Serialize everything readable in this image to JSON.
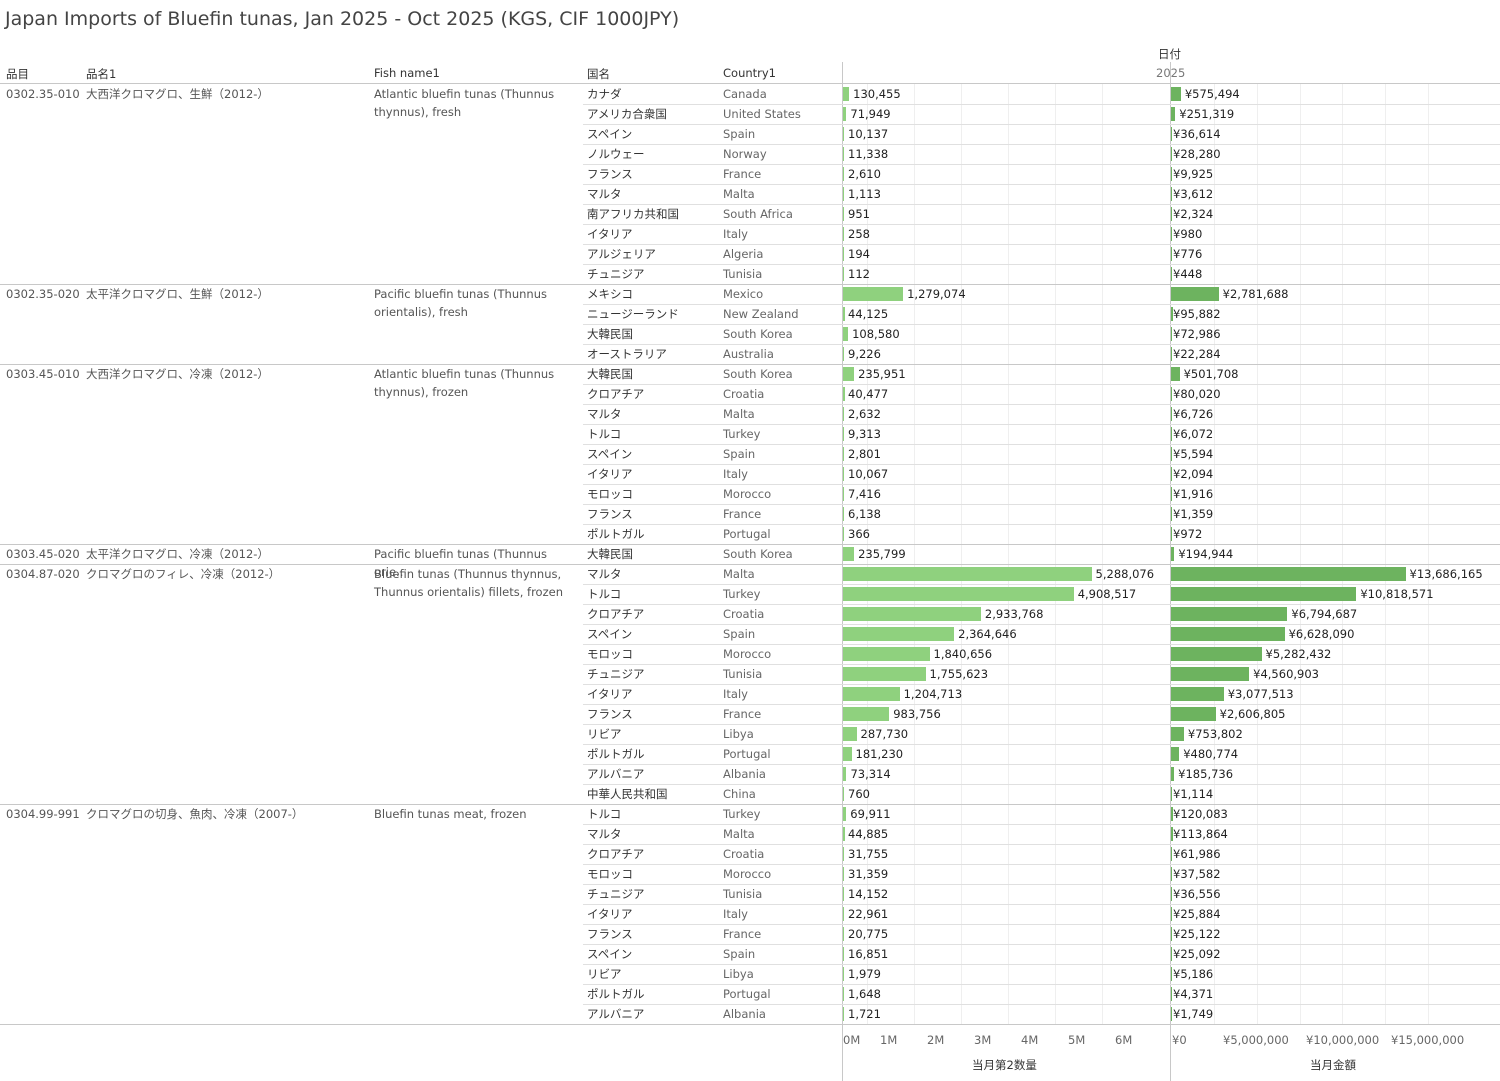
{
  "title": "Japan Imports of Bluefin tunas, Jan 2025 - Oct 2025 (KGS, CIF 1000JPY)",
  "headers": {
    "date": "日付",
    "year": "2025",
    "code": "品目",
    "jname": "品名1",
    "ename": "Fish name1",
    "jcountry": "国名",
    "ecountry": "Country1"
  },
  "axes": {
    "qty_title": "当月第2数量",
    "val_title": "当月金額",
    "qty_ticks": [
      "0M",
      "1M",
      "2M",
      "3M",
      "4M",
      "5M",
      "6M"
    ],
    "val_ticks": [
      "¥0",
      "¥5,000,000",
      "¥10,000,000",
      "¥15,000,000"
    ]
  },
  "colors": {
    "qty_bar": "#8fd17e",
    "val_bar": "#6db35f"
  },
  "chart_data": {
    "type": "bar",
    "orientation": "horizontal",
    "measures": [
      "当月第2数量",
      "当月金額"
    ],
    "qty_range": [
      0,
      6000000
    ],
    "val_range": [
      0,
      15000000
    ],
    "groups": [
      {
        "code": "0302.35-010",
        "jname": "大西洋クロマグロ、生鮮（2012-）",
        "ename": "Atlantic bluefin tunas (Thunnus thynnus), fresh",
        "rows": [
          {
            "jc": "カナダ",
            "ec": "Canada",
            "qty": 130455,
            "val": 575494
          },
          {
            "jc": "アメリカ合衆国",
            "ec": "United States",
            "qty": 71949,
            "val": 251319
          },
          {
            "jc": "スペイン",
            "ec": "Spain",
            "qty": 10137,
            "val": 36614
          },
          {
            "jc": "ノルウェー",
            "ec": "Norway",
            "qty": 11338,
            "val": 28280
          },
          {
            "jc": "フランス",
            "ec": "France",
            "qty": 2610,
            "val": 9925
          },
          {
            "jc": "マルタ",
            "ec": "Malta",
            "qty": 1113,
            "val": 3612
          },
          {
            "jc": "南アフリカ共和国",
            "ec": "South Africa",
            "qty": 951,
            "val": 2324
          },
          {
            "jc": "イタリア",
            "ec": "Italy",
            "qty": 258,
            "val": 980
          },
          {
            "jc": "アルジェリア",
            "ec": "Algeria",
            "qty": 194,
            "val": 776
          },
          {
            "jc": "チュニジア",
            "ec": "Tunisia",
            "qty": 112,
            "val": 448
          }
        ]
      },
      {
        "code": "0302.35-020",
        "jname": "太平洋クロマグロ、生鮮（2012-）",
        "ename": "Pacific bluefin tunas (Thunnus orientalis), fresh",
        "rows": [
          {
            "jc": "メキシコ",
            "ec": "Mexico",
            "qty": 1279074,
            "val": 2781688
          },
          {
            "jc": "ニュージーランド",
            "ec": "New Zealand",
            "qty": 44125,
            "val": 95882
          },
          {
            "jc": "大韓民国",
            "ec": "South Korea",
            "qty": 108580,
            "val": 72986
          },
          {
            "jc": "オーストラリア",
            "ec": "Australia",
            "qty": 9226,
            "val": 22284
          }
        ]
      },
      {
        "code": "0303.45-010",
        "jname": "大西洋クロマグロ、冷凍（2012-）",
        "ename": "Atlantic bluefin tunas (Thunnus thynnus), frozen",
        "rows": [
          {
            "jc": "大韓民国",
            "ec": "South Korea",
            "qty": 235951,
            "val": 501708
          },
          {
            "jc": "クロアチア",
            "ec": "Croatia",
            "qty": 40477,
            "val": 80020
          },
          {
            "jc": "マルタ",
            "ec": "Malta",
            "qty": 2632,
            "val": 6726
          },
          {
            "jc": "トルコ",
            "ec": "Turkey",
            "qty": 9313,
            "val": 6072
          },
          {
            "jc": "スペイン",
            "ec": "Spain",
            "qty": 2801,
            "val": 5594
          },
          {
            "jc": "イタリア",
            "ec": "Italy",
            "qty": 10067,
            "val": 2094
          },
          {
            "jc": "モロッコ",
            "ec": "Morocco",
            "qty": 7416,
            "val": 1916
          },
          {
            "jc": "フランス",
            "ec": "France",
            "qty": 6138,
            "val": 1359
          },
          {
            "jc": "ポルトガル",
            "ec": "Portugal",
            "qty": 366,
            "val": 972
          }
        ]
      },
      {
        "code": "0303.45-020",
        "jname": "太平洋クロマグロ、冷凍（2012-）",
        "ename": "Pacific bluefin tunas (Thunnus orie..",
        "rows": [
          {
            "jc": "大韓民国",
            "ec": "South Korea",
            "qty": 235799,
            "val": 194944
          }
        ]
      },
      {
        "code": "0304.87-020",
        "jname": "クロマグロのフィレ、冷凍（2012-）",
        "ename": "Bluefin tunas (Thunnus thynnus, Thunnus orientalis) fillets, frozen",
        "rows": [
          {
            "jc": "マルタ",
            "ec": "Malta",
            "qty": 5288076,
            "val": 13686165
          },
          {
            "jc": "トルコ",
            "ec": "Turkey",
            "qty": 4908517,
            "val": 10818571
          },
          {
            "jc": "クロアチア",
            "ec": "Croatia",
            "qty": 2933768,
            "val": 6794687
          },
          {
            "jc": "スペイン",
            "ec": "Spain",
            "qty": 2364646,
            "val": 6628090
          },
          {
            "jc": "モロッコ",
            "ec": "Morocco",
            "qty": 1840656,
            "val": 5282432
          },
          {
            "jc": "チュニジア",
            "ec": "Tunisia",
            "qty": 1755623,
            "val": 4560903
          },
          {
            "jc": "イタリア",
            "ec": "Italy",
            "qty": 1204713,
            "val": 3077513
          },
          {
            "jc": "フランス",
            "ec": "France",
            "qty": 983756,
            "val": 2606805
          },
          {
            "jc": "リビア",
            "ec": "Libya",
            "qty": 287730,
            "val": 753802
          },
          {
            "jc": "ポルトガル",
            "ec": "Portugal",
            "qty": 181230,
            "val": 480774
          },
          {
            "jc": "アルバニア",
            "ec": "Albania",
            "qty": 73314,
            "val": 185736
          },
          {
            "jc": "中華人民共和国",
            "ec": "China",
            "qty": 760,
            "val": 1114
          }
        ]
      },
      {
        "code": "0304.99-991",
        "jname": "クロマグロの切身、魚肉、冷凍（2007-）",
        "ename": "Bluefin tunas meat, frozen",
        "rows": [
          {
            "jc": "トルコ",
            "ec": "Turkey",
            "qty": 69911,
            "val": 120083
          },
          {
            "jc": "マルタ",
            "ec": "Malta",
            "qty": 44885,
            "val": 113864
          },
          {
            "jc": "クロアチア",
            "ec": "Croatia",
            "qty": 31755,
            "val": 61986
          },
          {
            "jc": "モロッコ",
            "ec": "Morocco",
            "qty": 31359,
            "val": 37582
          },
          {
            "jc": "チュニジア",
            "ec": "Tunisia",
            "qty": 14152,
            "val": 36556
          },
          {
            "jc": "イタリア",
            "ec": "Italy",
            "qty": 22961,
            "val": 25884
          },
          {
            "jc": "フランス",
            "ec": "France",
            "qty": 20775,
            "val": 25122
          },
          {
            "jc": "スペイン",
            "ec": "Spain",
            "qty": 16851,
            "val": 25092
          },
          {
            "jc": "リビア",
            "ec": "Libya",
            "qty": 1979,
            "val": 5186
          },
          {
            "jc": "ポルトガル",
            "ec": "Portugal",
            "qty": 1648,
            "val": 4371
          },
          {
            "jc": "アルバニア",
            "ec": "Albania",
            "qty": 1721,
            "val": 1749
          }
        ]
      }
    ]
  }
}
